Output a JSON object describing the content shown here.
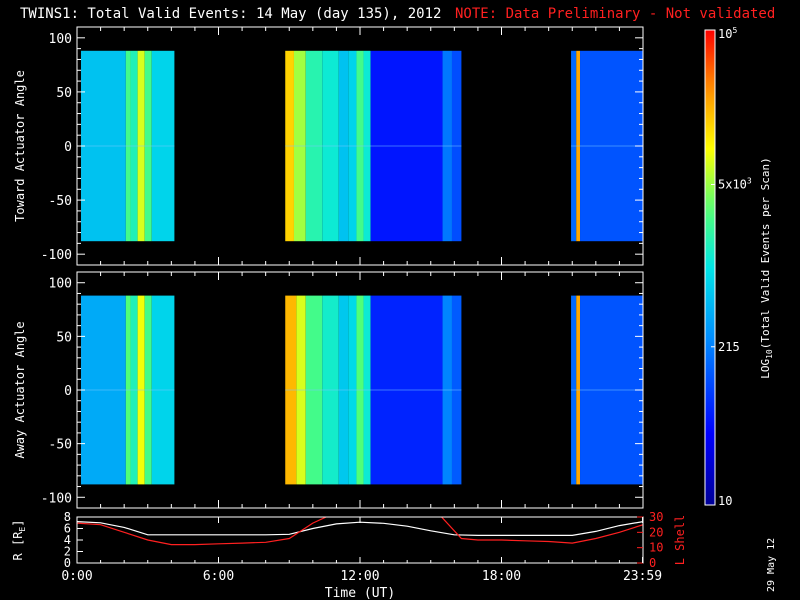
{
  "title": {
    "main": "TWINS1: Total Valid Events: 14 May (day 135), 2012",
    "note": "NOTE: Data Preliminary - Not validated"
  },
  "date_stamp": "29 May 12",
  "colors": {
    "background": "#000000",
    "axes": "#ffffff",
    "note": "#ff2020",
    "l_shell": "#ff2020",
    "radius": "#ffffff"
  },
  "chart_data": [
    {
      "type": "heatmap",
      "panel": "toward",
      "ylabel": "Toward Actuator Angle",
      "ylim": [
        -110,
        110
      ],
      "yticks": [
        -100,
        -50,
        0,
        50,
        100
      ],
      "xlim": [
        0,
        24
      ],
      "data_extent_y": [
        -88,
        88
      ],
      "data_intervals_hours": [
        [
          0.17,
          4.13
        ],
        [
          8.83,
          16.3
        ],
        [
          20.95,
          23.98
        ]
      ],
      "bands": [
        {
          "x0": 0.17,
          "x1": 2.07,
          "level": 0.44
        },
        {
          "x0": 2.07,
          "x1": 2.27,
          "level": 0.6
        },
        {
          "x0": 2.27,
          "x1": 2.57,
          "level": 0.55
        },
        {
          "x0": 2.57,
          "x1": 2.87,
          "level": 0.72
        },
        {
          "x0": 2.87,
          "x1": 3.17,
          "level": 0.6
        },
        {
          "x0": 3.17,
          "x1": 4.13,
          "level": 0.47
        },
        {
          "x0": 8.83,
          "x1": 9.2,
          "level": 0.8
        },
        {
          "x0": 9.2,
          "x1": 9.7,
          "level": 0.68
        },
        {
          "x0": 9.7,
          "x1": 10.4,
          "level": 0.56
        },
        {
          "x0": 10.4,
          "x1": 11.1,
          "level": 0.52
        },
        {
          "x0": 11.1,
          "x1": 11.5,
          "level": 0.44
        },
        {
          "x0": 11.5,
          "x1": 11.85,
          "level": 0.47
        },
        {
          "x0": 11.85,
          "x1": 12.15,
          "level": 0.6
        },
        {
          "x0": 12.15,
          "x1": 12.45,
          "level": 0.52
        },
        {
          "x0": 12.45,
          "x1": 15.5,
          "level": 0.18
        },
        {
          "x0": 15.5,
          "x1": 15.9,
          "level": 0.32
        },
        {
          "x0": 15.9,
          "x1": 16.3,
          "level": 0.26
        },
        {
          "x0": 20.95,
          "x1": 21.17,
          "level": 0.3
        },
        {
          "x0": 21.17,
          "x1": 21.33,
          "level": 0.85
        },
        {
          "x0": 21.33,
          "x1": 23.98,
          "level": 0.27
        }
      ]
    },
    {
      "type": "heatmap",
      "panel": "away",
      "ylabel": "Away Actuator Angle",
      "ylim": [
        -110,
        110
      ],
      "yticks": [
        -100,
        -50,
        0,
        50,
        100
      ],
      "xlim": [
        0,
        24
      ],
      "data_extent_y": [
        -88,
        88
      ],
      "data_intervals_hours": [
        [
          0.17,
          4.13
        ],
        [
          8.83,
          16.3
        ],
        [
          20.95,
          23.98
        ]
      ],
      "bands": [
        {
          "x0": 0.17,
          "x1": 2.07,
          "level": 0.4
        },
        {
          "x0": 2.07,
          "x1": 2.27,
          "level": 0.62
        },
        {
          "x0": 2.27,
          "x1": 2.57,
          "level": 0.55
        },
        {
          "x0": 2.57,
          "x1": 2.87,
          "level": 0.74
        },
        {
          "x0": 2.87,
          "x1": 3.17,
          "level": 0.6
        },
        {
          "x0": 3.17,
          "x1": 4.13,
          "level": 0.47
        },
        {
          "x0": 8.83,
          "x1": 9.3,
          "level": 0.83
        },
        {
          "x0": 9.3,
          "x1": 9.7,
          "level": 0.72
        },
        {
          "x0": 9.7,
          "x1": 10.4,
          "level": 0.6
        },
        {
          "x0": 10.4,
          "x1": 11.1,
          "level": 0.53
        },
        {
          "x0": 11.1,
          "x1": 11.5,
          "level": 0.45
        },
        {
          "x0": 11.5,
          "x1": 11.85,
          "level": 0.48
        },
        {
          "x0": 11.85,
          "x1": 12.15,
          "level": 0.62
        },
        {
          "x0": 12.15,
          "x1": 12.45,
          "level": 0.52
        },
        {
          "x0": 12.45,
          "x1": 15.5,
          "level": 0.2
        },
        {
          "x0": 15.5,
          "x1": 15.9,
          "level": 0.34
        },
        {
          "x0": 15.9,
          "x1": 16.3,
          "level": 0.28
        },
        {
          "x0": 20.95,
          "x1": 21.17,
          "level": 0.3
        },
        {
          "x0": 21.17,
          "x1": 21.33,
          "level": 0.85
        },
        {
          "x0": 21.33,
          "x1": 23.98,
          "level": 0.27
        }
      ]
    },
    {
      "type": "line",
      "panel": "orbit",
      "ylabel": "R [R",
      "ylabel_subscript": "E",
      "ylabel_close": "]",
      "ylim": [
        0,
        8
      ],
      "yticks": [
        0,
        2,
        4,
        6,
        8
      ],
      "y2label": "L Shell",
      "y2lim": [
        0,
        30
      ],
      "y2ticks": [
        0,
        10,
        20,
        30
      ],
      "xlabel": "Time (UT)",
      "xlim": [
        0,
        24
      ],
      "xticks": [
        0,
        6,
        12,
        18,
        23.98
      ],
      "xticklabels": [
        "0:00",
        "6:00",
        "12:00",
        "18:00",
        "23:59"
      ],
      "series": [
        {
          "axis": "left",
          "color": "#ffffff",
          "x": [
            0,
            1,
            2,
            3,
            4,
            5,
            6,
            7,
            8,
            9,
            10,
            11,
            12,
            13,
            14,
            15,
            16,
            17,
            18,
            19,
            20,
            21,
            22,
            23,
            24
          ],
          "y": [
            7.2,
            7.0,
            6.2,
            4.9,
            4.9,
            4.9,
            4.9,
            4.9,
            4.9,
            5.0,
            6.0,
            6.8,
            7.1,
            6.9,
            6.4,
            5.6,
            4.9,
            4.8,
            4.8,
            4.8,
            4.8,
            4.8,
            5.5,
            6.5,
            7.2
          ]
        },
        {
          "axis": "right",
          "color": "#ff2020",
          "x": [
            0,
            1,
            2,
            3,
            4,
            5,
            6,
            7,
            8,
            9,
            10,
            10.7,
            15.4,
            16.3,
            17,
            18,
            19,
            20,
            21,
            22,
            23,
            24
          ],
          "y": [
            26,
            25,
            20,
            15,
            12,
            12,
            12.5,
            13,
            13.5,
            16,
            26,
            31,
            31,
            16,
            15,
            15,
            14.5,
            14,
            13,
            16,
            20,
            25
          ]
        }
      ]
    }
  ],
  "colorbar": {
    "label": "LOG",
    "label_sub": "10",
    "label_rest": "(Total Valid Events per Scan)",
    "range": [
      10,
      100000
    ],
    "ticks": [
      {
        "value": 100000,
        "text": "10",
        "sup": "5"
      },
      {
        "value": 5000,
        "text": "5x10",
        "sup": "3"
      },
      {
        "value": 215,
        "text": "215",
        "sup": ""
      },
      {
        "value": 10,
        "text": "10",
        "sup": ""
      }
    ]
  }
}
